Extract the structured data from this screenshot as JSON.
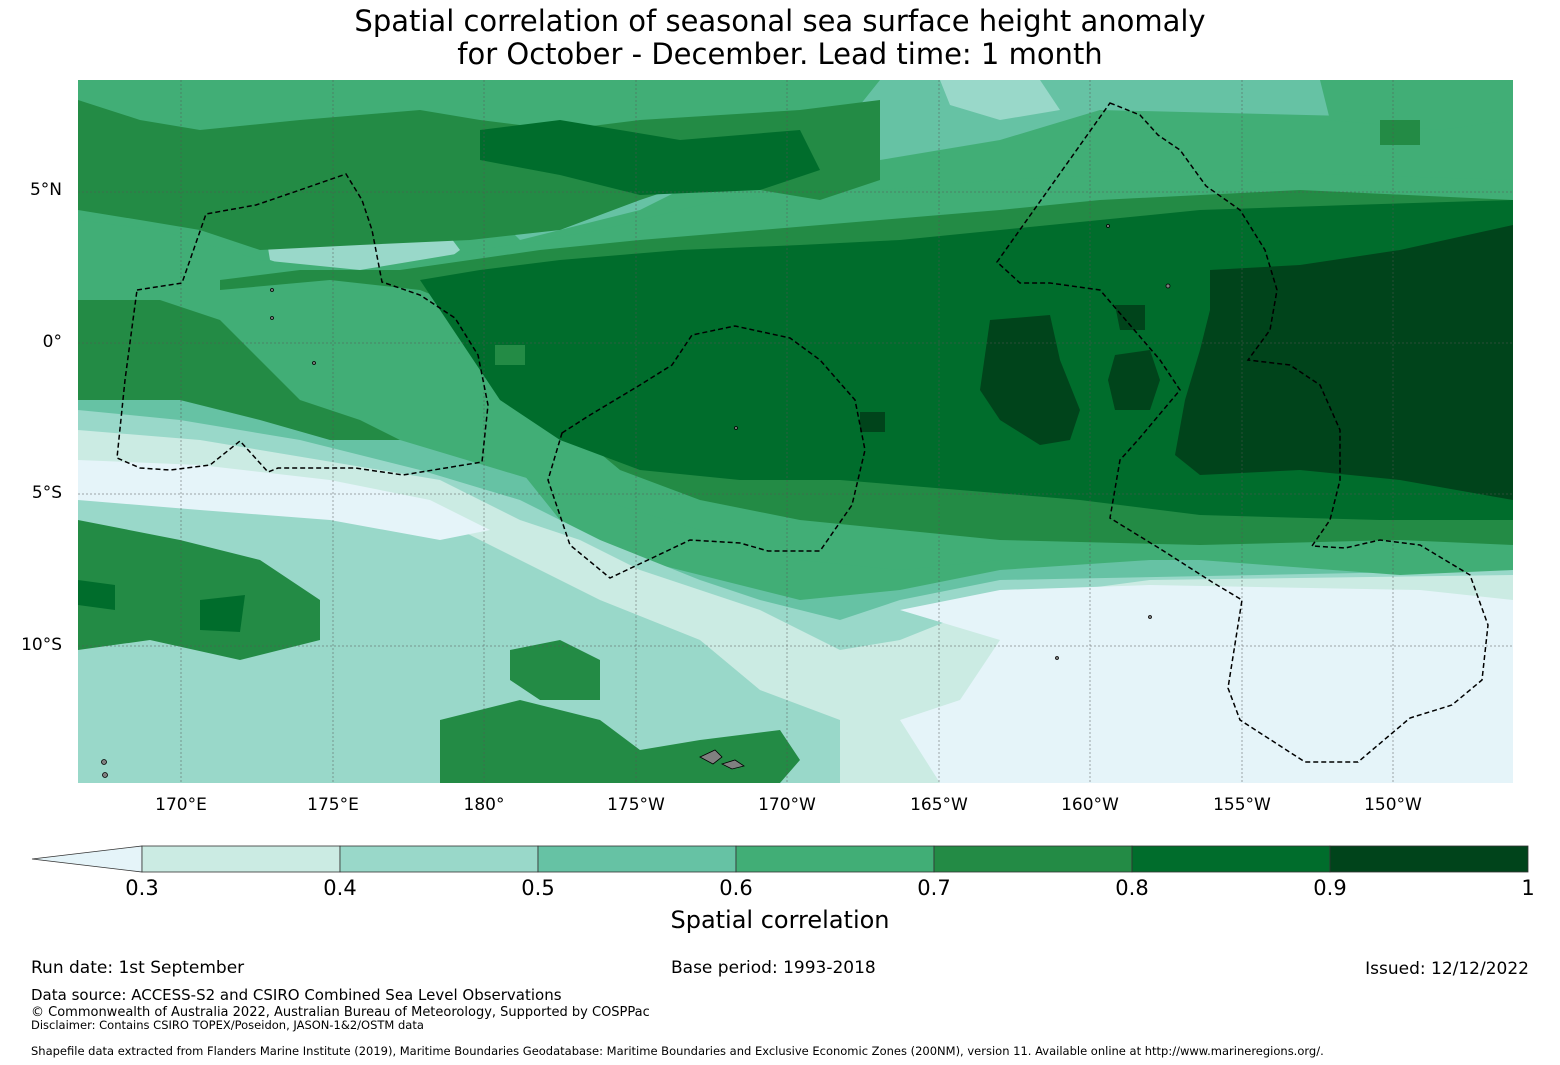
{
  "title": {
    "line1": "Spatial correlation of seasonal sea surface height anomaly",
    "line2": "for October - December. Lead time: 1 month"
  },
  "map": {
    "lat_labels": [
      "5°N",
      "0°",
      "5°S",
      "10°S"
    ],
    "lon_labels": [
      "170°E",
      "175°E",
      "180°",
      "175°W",
      "170°W",
      "165°W",
      "160°W",
      "155°W",
      "150°W"
    ]
  },
  "colorbar": {
    "title": "Spatial correlation",
    "ticks": [
      "0.3",
      "0.4",
      "0.5",
      "0.6",
      "0.7",
      "0.8",
      "0.9",
      "1"
    ],
    "colors": {
      "below_0_3": "#e5f4f9",
      "b0_3": "#cbebe3",
      "b0_4": "#99d8c9",
      "b0_5": "#66c2a4",
      "b0_6": "#41ae76",
      "b0_7": "#238b45",
      "b0_8": "#006d2c",
      "b0_9": "#00441b"
    }
  },
  "footer": {
    "run_date": "Run date: 1st September",
    "base_period": "Base period: 1993-2018",
    "issued": "Issued: 12/12/2022",
    "data_source": "Data source: ACCESS-S2 and CSIRO Combined Sea Level Observations",
    "copyright": "© Commonwealth of Australia 2022, Australian Bureau of Meteorology, Supported by COSPPac",
    "disclaimer": "Disclaimer: Contains CSIRO TOPEX/Poseidon, JASON-1&2/OSTM data",
    "shapefile": "Shapefile data extracted from Flanders Marine Institute (2019), Maritime Boundaries Geodatabase: Maritime Boundaries and Exclusive Economic Zones (200NM), version 11. Available online at http://www.marineregions.org/."
  }
}
